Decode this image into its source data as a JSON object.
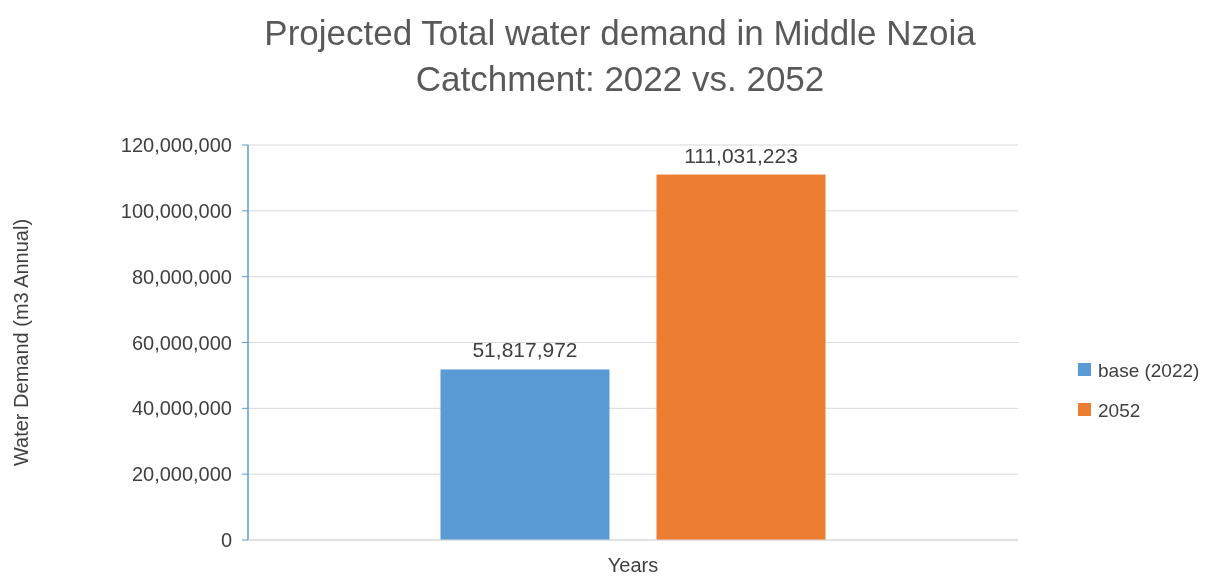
{
  "chart_data": {
    "type": "bar",
    "title": "Projected Total water demand in Middle Nzoia Catchment: 2022 vs. 2052",
    "ylabel": "Water Demand (m3 Annual)",
    "categories": [
      "Years"
    ],
    "series": [
      {
        "name": "base (2022)",
        "color": "#5b9bd5",
        "values": [
          51817972
        ],
        "value_labels": [
          "51,817,972"
        ]
      },
      {
        "name": "2052",
        "color": "#ed7d31",
        "values": [
          111031223
        ],
        "value_labels": [
          "111,031,223"
        ]
      }
    ],
    "ylim": [
      0,
      120000000
    ],
    "yticks": [
      0,
      {
        "value": 20000000,
        "label": "20,000,000"
      },
      {
        "value": 40000000,
        "label": "40,000,000"
      },
      {
        "value": 60000000,
        "label": "60,000,000"
      },
      {
        "value": 80000000,
        "label": "80,000,000"
      },
      {
        "value": 100000000,
        "label": "100,000,000"
      },
      {
        "value": 120000000,
        "label": "120,000,000"
      }
    ],
    "grid": "y",
    "legend": "right"
  }
}
